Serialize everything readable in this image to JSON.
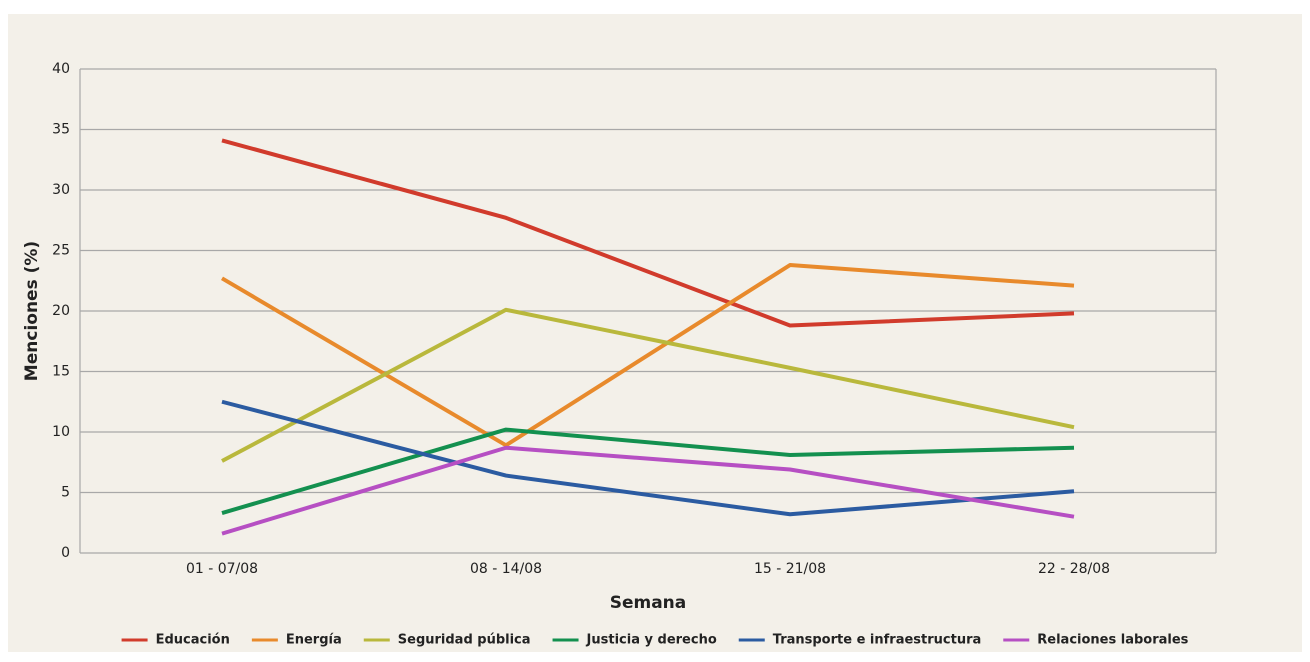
{
  "chart_data": {
    "type": "line",
    "x_label": "Semana",
    "y_label": "Menciones (%)",
    "categories": [
      "01 - 07/08",
      "08 - 14/08",
      "15 - 21/08",
      "22 - 28/08"
    ],
    "series": [
      {
        "name": "Educación",
        "color": "#d13b2c",
        "values": [
          34.1,
          27.7,
          18.8,
          19.8
        ]
      },
      {
        "name": "Energía",
        "color": "#e88a2c",
        "values": [
          22.7,
          8.9,
          23.8,
          22.1
        ]
      },
      {
        "name": "Seguridad pública",
        "color": "#b9b83c",
        "values": [
          7.6,
          20.1,
          15.3,
          10.4
        ]
      },
      {
        "name": "Justicia y derecho",
        "color": "#13904f",
        "values": [
          3.3,
          10.2,
          8.1,
          8.7
        ]
      },
      {
        "name": "Transporte e infraestructura",
        "color": "#2b5ba1",
        "values": [
          12.5,
          6.4,
          3.2,
          5.1
        ]
      },
      {
        "name": "Relaciones laborales",
        "color": "#b64fc3",
        "values": [
          1.6,
          8.7,
          6.9,
          3.0
        ]
      }
    ],
    "ylim": [
      0,
      40
    ],
    "yticks": [
      0,
      5,
      10,
      15,
      20,
      25,
      30,
      35,
      40
    ],
    "grid": true,
    "legend": "bottom"
  }
}
